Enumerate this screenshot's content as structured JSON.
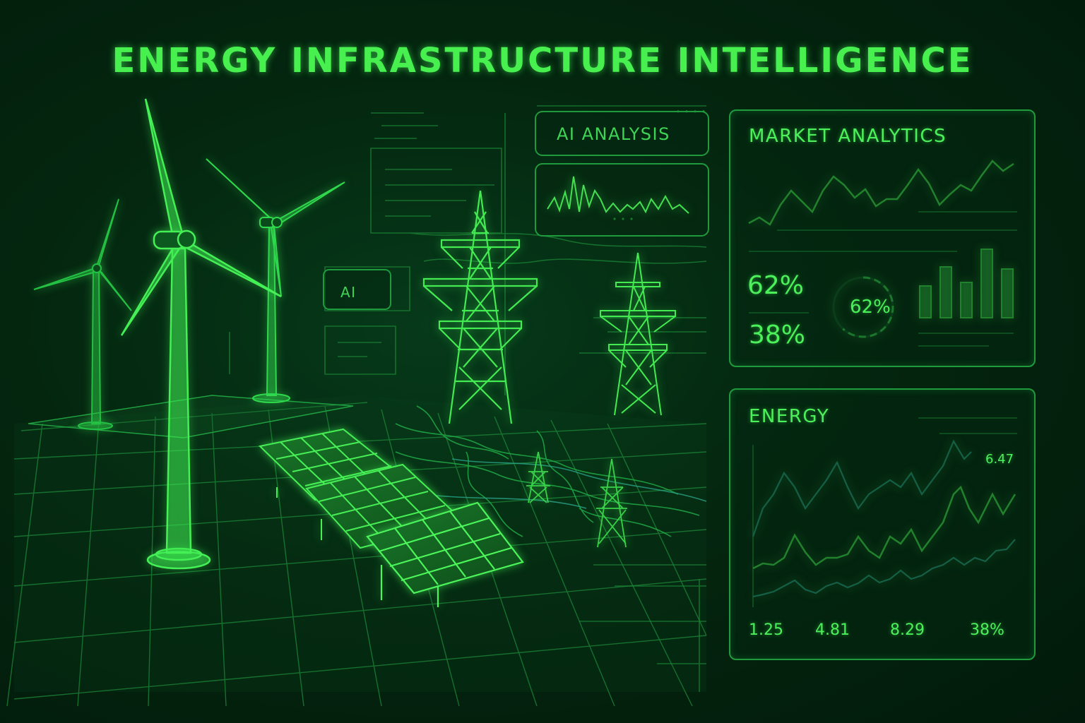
{
  "header": {
    "title": "ENERGY INFRASTRUCTURE INTELLIGENCE"
  },
  "ai_analysis": {
    "title": "AI ANALYSIS"
  },
  "ai_tag": {
    "label": "AI"
  },
  "market_analytics": {
    "title": "MARKET ANALYTICS",
    "stat_top": "62%",
    "stat_bottom": "38%",
    "gauge_label": "62%",
    "gauge_fraction": 0.62,
    "bar_levels": [
      0.45,
      0.72,
      0.5,
      0.97,
      0.69
    ]
  },
  "energy": {
    "title": "ENERGY",
    "peak_label": "6.47",
    "stats": [
      "1.25",
      "4.81",
      "8.29",
      "38%"
    ]
  },
  "colors": {
    "accent": "#47f04f",
    "panel_border": "#1f9a3d",
    "teal_line": "#2aa58a",
    "background": "#04260f"
  }
}
